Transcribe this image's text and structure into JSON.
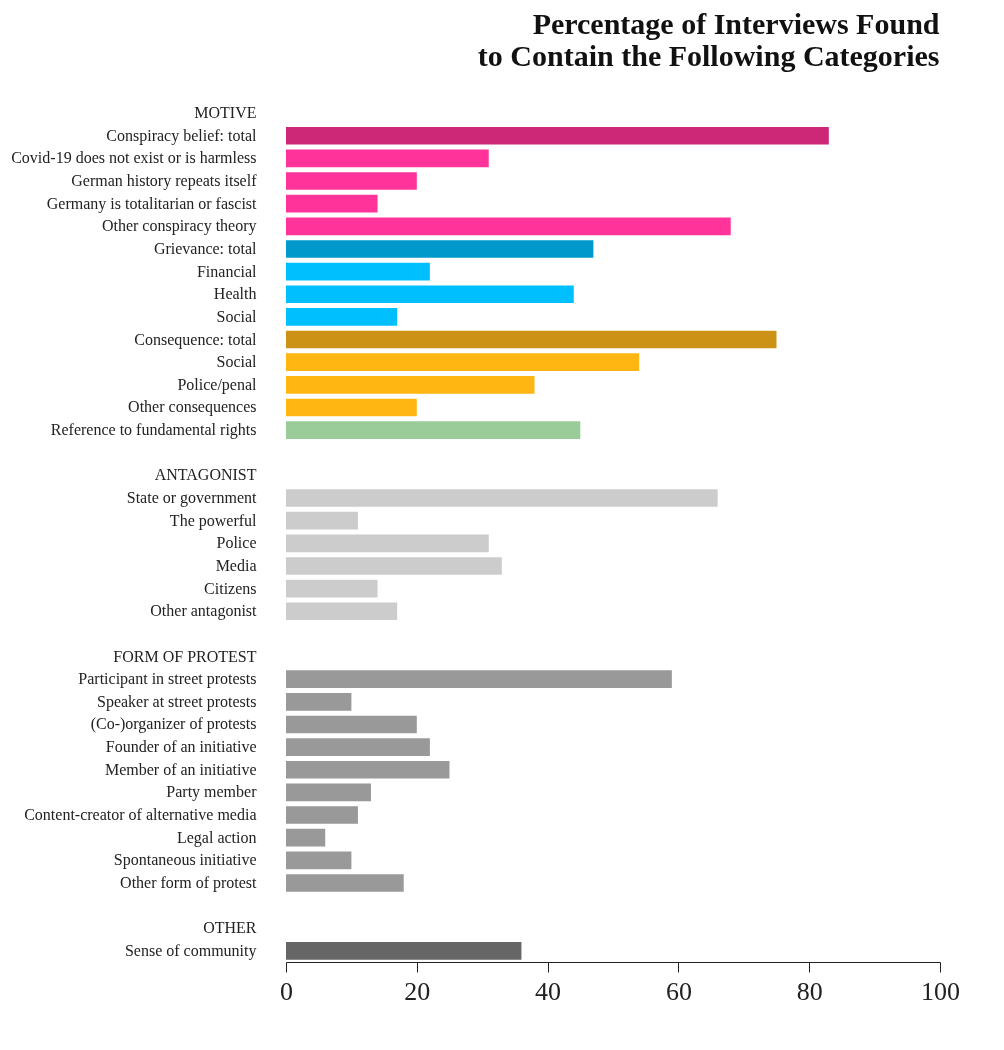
{
  "chart_data": {
    "type": "bar",
    "orientation": "horizontal",
    "title": "Percentage of Interviews Found\nto Contain the Following Categories",
    "categories": [
      "MOTIVE",
      "Conspiracy belief: total",
      "Covid-19 does not exist or is harmless",
      "German history repeats itself",
      "Germany is totalitarian or fascist",
      "Other conspiracy theory",
      "Grievance: total",
      "Financial",
      "Health",
      "Social",
      "Consequence: total",
      "Social",
      "Police/penal",
      "Other consequences",
      "Reference to fundamental rights",
      null,
      "ANTAGONIST",
      "State or government",
      "The powerful",
      "Police",
      "Media",
      "Citizens",
      "Other antagonist",
      null,
      "FORM OF PROTEST",
      "Participant in street protests",
      "Speaker at street protests",
      "(Co-)organizer of protests",
      "Founder of an initiative",
      "Member of an initiative",
      "Party member",
      "Content-creator of alternative media",
      "Legal action",
      "Spontaneous initiative",
      "Other form of protest",
      null,
      "OTHER",
      "Sense of community"
    ],
    "values": [
      null,
      83,
      31,
      20,
      14,
      68,
      47,
      22,
      44,
      17,
      75,
      54,
      38,
      20,
      45,
      null,
      null,
      66,
      11,
      31,
      33,
      14,
      17,
      null,
      null,
      59,
      10,
      20,
      22,
      25,
      13,
      11,
      6,
      10,
      18,
      null,
      null,
      36
    ],
    "colors": [
      null,
      "#cc2877",
      "#ff3399",
      "#ff3399",
      "#ff3399",
      "#ff3399",
      "#0099cc",
      "#00bfff",
      "#00bfff",
      "#00bfff",
      "#cc9216",
      "#ffb612",
      "#ffb612",
      "#ffb612",
      "#99cc99",
      null,
      null,
      "#cccccc",
      "#cccccc",
      "#cccccc",
      "#cccccc",
      "#cccccc",
      "#cccccc",
      null,
      null,
      "#999999",
      "#999999",
      "#999999",
      "#999999",
      "#999999",
      "#999999",
      "#999999",
      "#999999",
      "#999999",
      "#999999",
      null,
      null,
      "#666666"
    ],
    "xlim": [
      0,
      100
    ],
    "xticks": [
      0,
      20,
      40,
      60,
      80,
      100
    ]
  }
}
